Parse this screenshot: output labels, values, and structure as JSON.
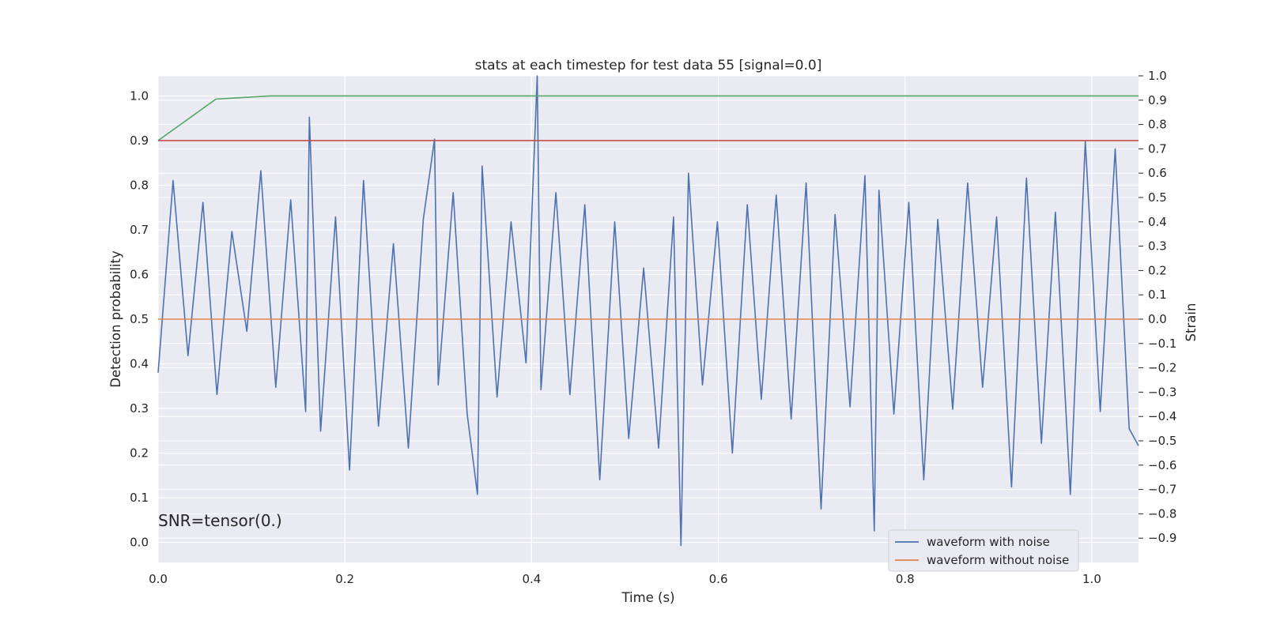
{
  "chart_data": {
    "type": "line",
    "title": "stats at each timestep for test data 55 [signal=0.0]",
    "xlabel": "Time (s)",
    "ylabel_left": "Detection probability",
    "ylabel_right": "Strain",
    "xlim": [
      0.0,
      1.05
    ],
    "ylim_left": [
      -0.045,
      1.045
    ],
    "ylim_right": [
      -1.0,
      1.0
    ],
    "xticks": [
      "0.0",
      "0.2",
      "0.4",
      "0.6",
      "0.8",
      "1.0"
    ],
    "yticks_left": [
      "0.0",
      "0.1",
      "0.2",
      "0.3",
      "0.4",
      "0.5",
      "0.6",
      "0.7",
      "0.8",
      "0.9",
      "1.0"
    ],
    "yticks_right": [
      "−0.9",
      "−0.8",
      "−0.7",
      "−0.6",
      "−0.5",
      "−0.4",
      "−0.3",
      "−0.2",
      "−0.1",
      "0.0",
      "0.1",
      "0.2",
      "0.3",
      "0.4",
      "0.5",
      "0.6",
      "0.7",
      "0.8",
      "0.9",
      "1.0"
    ],
    "annotation": "SNR=tensor(0.)",
    "grid": true,
    "legend_position": "lower-right",
    "series": [
      {
        "name": "waveform with noise",
        "axis": "right",
        "color": "#4c72b0",
        "x": [
          0.0,
          0.016,
          0.032,
          0.048,
          0.063,
          0.079,
          0.095,
          0.11,
          0.126,
          0.142,
          0.158,
          0.162,
          0.174,
          0.19,
          0.205,
          0.22,
          0.236,
          0.252,
          0.268,
          0.284,
          0.296,
          0.3,
          0.316,
          0.331,
          0.342,
          0.347,
          0.363,
          0.378,
          0.394,
          0.406,
          0.41,
          0.426,
          0.441,
          0.457,
          0.473,
          0.489,
          0.504,
          0.52,
          0.536,
          0.552,
          0.56,
          0.568,
          0.583,
          0.599,
          0.615,
          0.631,
          0.646,
          0.662,
          0.678,
          0.694,
          0.71,
          0.725,
          0.741,
          0.757,
          0.767,
          0.772,
          0.788,
          0.804,
          0.82,
          0.835,
          0.851,
          0.867,
          0.883,
          0.898,
          0.914,
          0.93,
          0.946,
          0.961,
          0.977,
          0.993,
          1.009,
          1.025,
          1.04,
          1.05
        ],
        "y": [
          -0.22,
          0.57,
          -0.15,
          0.48,
          -0.31,
          0.36,
          -0.05,
          0.61,
          -0.28,
          0.49,
          -0.38,
          0.83,
          -0.46,
          0.42,
          -0.62,
          0.57,
          -0.44,
          0.31,
          -0.53,
          0.41,
          0.74,
          -0.27,
          0.52,
          -0.39,
          -0.72,
          0.63,
          -0.32,
          0.4,
          -0.18,
          1.0,
          -0.29,
          0.52,
          -0.31,
          0.47,
          -0.66,
          0.4,
          -0.49,
          0.21,
          -0.53,
          0.42,
          -0.93,
          0.6,
          -0.27,
          0.4,
          -0.55,
          0.47,
          -0.33,
          0.51,
          -0.41,
          0.56,
          -0.78,
          0.43,
          -0.36,
          0.59,
          -0.87,
          0.53,
          -0.39,
          0.48,
          -0.66,
          0.41,
          -0.37,
          0.56,
          -0.28,
          0.42,
          -0.69,
          0.58,
          -0.51,
          0.44,
          -0.72,
          0.73,
          -0.38,
          0.7,
          -0.45,
          -0.52
        ]
      },
      {
        "name": "waveform without noise",
        "axis": "right",
        "color": "#dd8452",
        "x": [
          0.0,
          1.05
        ],
        "y": [
          0.0,
          0.0
        ]
      },
      {
        "name": "",
        "axis": "left",
        "color": "#55a868",
        "x": [
          0.0,
          0.062,
          0.12,
          1.05
        ],
        "y": [
          0.9,
          0.993,
          1.0,
          1.0
        ]
      },
      {
        "name": "",
        "axis": "left",
        "color": "#c44e52",
        "x": [
          0.0,
          1.05
        ],
        "y": [
          0.9,
          0.9
        ]
      }
    ]
  }
}
